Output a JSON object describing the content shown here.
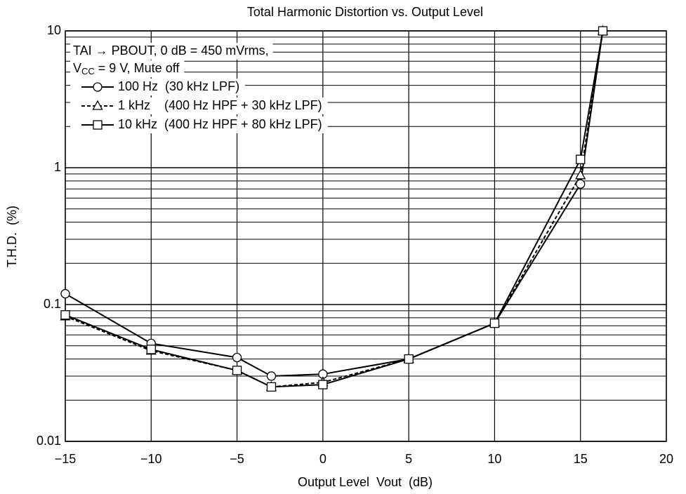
{
  "chart_data": {
    "type": "line",
    "title": "Total Harmonic Distortion vs. Output Level",
    "x_label": "Output Level  Vout  (dB)",
    "y_label": "T.H.D.  (%)",
    "annotation": {
      "line1": "TAI → PBOUT, 0 dB = 450 mVrms,",
      "line2_main": "V",
      "line2_sub": "CC",
      "line2_rest": " = 9 V, Mute off"
    },
    "x": [
      -15,
      -10,
      -5,
      -3,
      0,
      5,
      10,
      15,
      16.3
    ],
    "series": [
      {
        "name": "100 Hz  (30 kHz LPF)",
        "color": "#000000",
        "marker": "circle",
        "dashed": false,
        "values": [
          0.12,
          0.052,
          0.041,
          0.03,
          0.031,
          0.04,
          0.073,
          0.76,
          10
        ]
      },
      {
        "name": "1 kHz    (400 Hz HPF + 30 kHz LPF)",
        "color": "#000000",
        "marker": "triangle",
        "dashed": true,
        "values": [
          0.082,
          0.046,
          0.033,
          0.025,
          0.027,
          0.04,
          0.073,
          0.88,
          10
        ]
      },
      {
        "name": "10 kHz  (400 Hz HPF + 80 kHz LPF)",
        "color": "#000000",
        "marker": "square",
        "dashed": false,
        "values": [
          0.084,
          0.047,
          0.033,
          0.025,
          0.026,
          0.04,
          0.073,
          1.15,
          10
        ]
      }
    ],
    "xlim": [
      -15,
      20
    ],
    "ylim": [
      0.01,
      10
    ],
    "y_log": true,
    "grid": true,
    "minor_grid": true,
    "xticks": [
      {
        "value": -15,
        "label": "−15"
      },
      {
        "value": -10,
        "label": "−10"
      },
      {
        "value": -5,
        "label": "−5"
      },
      0,
      5,
      10,
      15,
      20
    ],
    "yticks": [
      0.01,
      0.1,
      1,
      10
    ]
  }
}
